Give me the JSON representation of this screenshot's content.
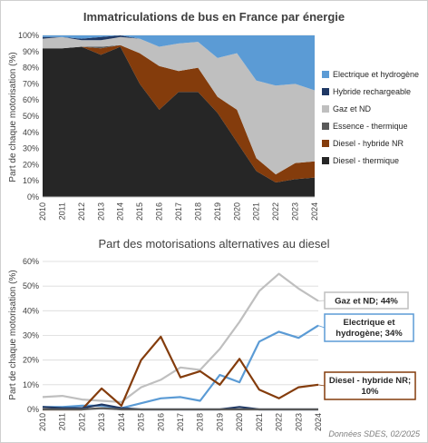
{
  "chart_data": [
    {
      "type": "area",
      "stacked": true,
      "title": "Immatriculations de bus en France par énergie",
      "ylabel": "Part de chaque motorisation (%)",
      "ylim": [
        0,
        100
      ],
      "y_ticks": [
        "0%",
        "10%",
        "20%",
        "30%",
        "40%",
        "50%",
        "60%",
        "70%",
        "80%",
        "90%",
        "100%"
      ],
      "x": [
        "2010",
        "2011",
        "2012",
        "2013",
        "2014",
        "2015",
        "2016",
        "2017",
        "2018",
        "2019",
        "2020",
        "2021",
        "2022",
        "2023",
        "2024"
      ],
      "legend_position": "right",
      "series": [
        {
          "name": "Diesel - thermique",
          "color": "#262626",
          "values": [
            92,
            92,
            93,
            88,
            93,
            70,
            54,
            65,
            65,
            52,
            34,
            16,
            9,
            11,
            12
          ]
        },
        {
          "name": "Diesel - hybride NR",
          "color": "#843c0c",
          "values": [
            0,
            0,
            0,
            4,
            1,
            19,
            27,
            13,
            15,
            10,
            20,
            8,
            5,
            10,
            10
          ]
        },
        {
          "name": "Essence - thermique",
          "color": "#595959",
          "values": [
            0,
            0,
            0,
            1,
            0,
            0,
            0,
            0,
            0,
            0,
            0,
            0,
            0,
            0,
            0
          ]
        },
        {
          "name": "Gaz et ND",
          "color": "#bfbfbf",
          "values": [
            6,
            7,
            4,
            4,
            5,
            9,
            12,
            17,
            16,
            24,
            35,
            48,
            55,
            49,
            44
          ]
        },
        {
          "name": "Hybride rechargeable",
          "color": "#1f3864",
          "values": [
            1,
            0,
            1,
            2,
            1,
            0,
            0,
            0,
            0,
            0,
            0,
            0,
            0,
            0,
            0
          ]
        },
        {
          "name": "Electrique et hydrogène",
          "color": "#5b9bd5",
          "values": [
            1,
            1,
            2,
            1,
            0,
            2,
            7,
            5,
            4,
            14,
            11,
            28,
            31,
            30,
            34
          ]
        }
      ]
    },
    {
      "type": "line",
      "title": "Part des motorisations alternatives au diesel",
      "ylabel": "Part de chaque motorisation (%)",
      "ylim": [
        0,
        60
      ],
      "y_ticks": [
        "0%",
        "10%",
        "20%",
        "30%",
        "40%",
        "50%",
        "60%"
      ],
      "x": [
        "2010",
        "2011",
        "2012",
        "2013",
        "2014",
        "2015",
        "2016",
        "2017",
        "2018",
        "2019",
        "2020",
        "2021",
        "2022",
        "2023",
        "2024"
      ],
      "series": [
        {
          "name": "Gaz et ND",
          "color": "#bfbfbf",
          "values": [
            5,
            5.5,
            4,
            3.5,
            3,
            9,
            12,
            17,
            16,
            24.5,
            35.5,
            48,
            55,
            49,
            44
          ]
        },
        {
          "name": "Electrique et hydrogène",
          "color": "#5b9bd5",
          "values": [
            1,
            1,
            1.5,
            1.5,
            0.5,
            2.5,
            4.5,
            5,
            3.5,
            14,
            11,
            27.5,
            31.5,
            29,
            34
          ]
        },
        {
          "name": "Diesel - hybride NR",
          "color": "#843c0c",
          "values": [
            0,
            0,
            0,
            8.5,
            1.5,
            20,
            29.5,
            13,
            15.5,
            10,
            20.5,
            8,
            4.5,
            9,
            10
          ]
        },
        {
          "name": "Hybride rechargeable",
          "color": "#1f3864",
          "values": [
            1,
            0.5,
            0.5,
            2,
            0.5,
            0,
            0,
            0,
            0,
            0,
            1,
            0,
            0,
            0,
            0
          ]
        },
        {
          "name": "Essence - thermique",
          "color": "#595959",
          "values": [
            0,
            0,
            0,
            0.5,
            0,
            0,
            0,
            0,
            0,
            0,
            0,
            0,
            0,
            0,
            0
          ]
        }
      ],
      "callouts": [
        {
          "series": "Gaz et ND",
          "lines": [
            "Gaz et ND; 44%"
          ],
          "border": "#bfbfbf"
        },
        {
          "series": "Electrique et hydrogène",
          "lines": [
            "Electrique et",
            "hydrogène; 34%"
          ],
          "border": "#5b9bd5"
        },
        {
          "series": "Diesel - hybride NR",
          "lines": [
            "Diesel - hybride NR;",
            "10%"
          ],
          "border": "#843c0c"
        }
      ]
    }
  ],
  "source": "Données SDES, 02/2025"
}
